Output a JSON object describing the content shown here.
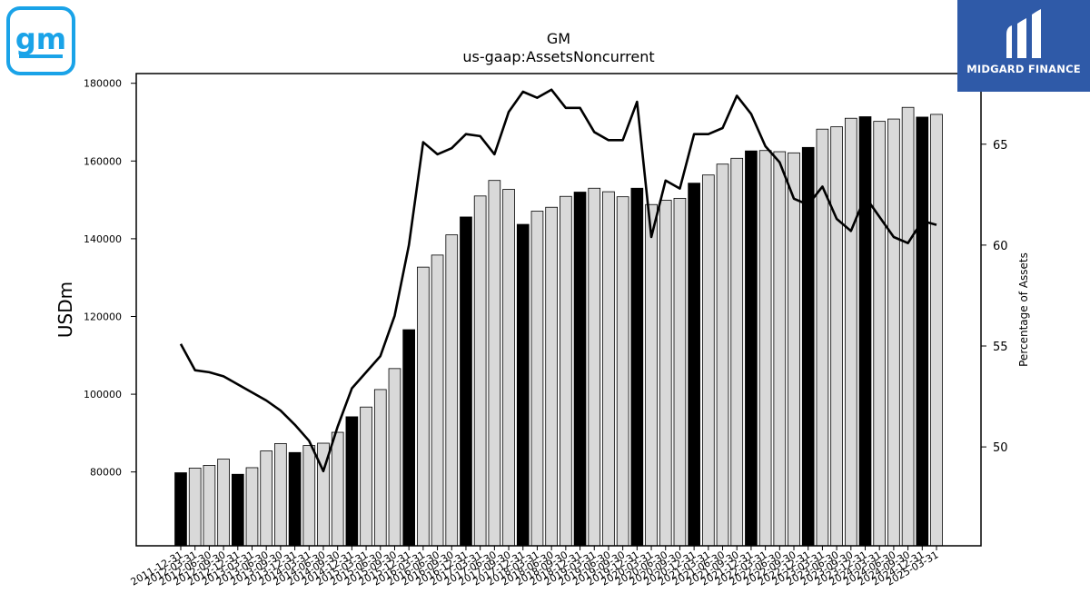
{
  "logos": {
    "gm_text": "gm",
    "midgard_text": "MIDGARD FINANCE"
  },
  "colors": {
    "gm_logo": "#1aa3e8",
    "midgard_bg": "#2f5aa8",
    "bar_highlight": "#000000",
    "bar_default": "#d9d9d9",
    "line": "#000000"
  },
  "chart_data": {
    "type": "bar",
    "title": "GM",
    "subtitle": "us-gaap:AssetsNoncurrent",
    "ylabel": "USDm",
    "y2label": "Percentage of Assets",
    "ylim": [
      61000,
      182500
    ],
    "y2lim": [
      45.1,
      68.5
    ],
    "yticks": [
      80000,
      100000,
      120000,
      140000,
      160000,
      180000
    ],
    "y2ticks": [
      50,
      55,
      60,
      65
    ],
    "categories": [
      "2011-12-31",
      "2012-03-31",
      "2012-06-30",
      "2012-09-30",
      "2012-12-31",
      "2013-03-31",
      "2013-06-30",
      "2013-09-30",
      "2013-12-31",
      "2014-03-31",
      "2014-06-30",
      "2014-09-30",
      "2014-12-31",
      "2015-03-31",
      "2015-06-30",
      "2015-09-30",
      "2015-12-31",
      "2016-03-31",
      "2016-06-30",
      "2016-09-30",
      "2016-12-31",
      "2017-03-31",
      "2017-06-30",
      "2017-09-30",
      "2017-12-31",
      "2018-03-31",
      "2018-06-30",
      "2018-09-30",
      "2018-12-31",
      "2019-03-31",
      "2019-06-30",
      "2019-09-30",
      "2019-12-31",
      "2020-03-31",
      "2020-06-30",
      "2020-09-30",
      "2020-12-31",
      "2021-03-31",
      "2021-06-30",
      "2021-09-30",
      "2021-12-31",
      "2022-03-31",
      "2022-06-30",
      "2022-09-30",
      "2022-12-31",
      "2023-03-31",
      "2023-06-30",
      "2023-09-30",
      "2023-12-31",
      "2024-03-31",
      "2024-06-30",
      "2024-09-30",
      "2024-12-31",
      "2025-03-31"
    ],
    "highlight": [
      true,
      false,
      false,
      false,
      true,
      false,
      false,
      false,
      true,
      false,
      false,
      false,
      true,
      false,
      false,
      false,
      true,
      false,
      false,
      false,
      true,
      false,
      false,
      false,
      true,
      false,
      false,
      false,
      true,
      false,
      false,
      false,
      true,
      false,
      false,
      false,
      true,
      false,
      false,
      false,
      true,
      false,
      false,
      false,
      true,
      false,
      false,
      false,
      true,
      false,
      false,
      false,
      true,
      false
    ],
    "series": [
      {
        "type": "bar",
        "axis": "left",
        "values": [
          79800,
          81000,
          81700,
          83300,
          79400,
          81100,
          85400,
          87300,
          85000,
          86800,
          87400,
          90200,
          94200,
          96700,
          101200,
          106600,
          116600,
          132700,
          135800,
          141000,
          145600,
          151000,
          155000,
          152700,
          143700,
          147100,
          148100,
          150900,
          152000,
          153000,
          152100,
          150800,
          153000,
          148800,
          149900,
          150400,
          154300,
          156400,
          159200,
          160700,
          162600,
          162700,
          162400,
          162100,
          163500,
          168200,
          168800,
          171000,
          171400,
          170200,
          170800,
          173800,
          171300,
          172000
        ]
      },
      {
        "type": "line",
        "axis": "right",
        "values": [
          55.1,
          53.8,
          53.7,
          53.5,
          53.1,
          52.7,
          52.3,
          51.8,
          51.1,
          50.3,
          48.8,
          51.0,
          52.9,
          53.7,
          54.5,
          56.5,
          60.0,
          65.1,
          64.5,
          64.8,
          65.5,
          65.4,
          64.5,
          66.6,
          67.6,
          67.3,
          67.7,
          66.8,
          66.8,
          65.6,
          65.2,
          65.2,
          67.1,
          60.4,
          63.2,
          62.8,
          65.5,
          65.5,
          65.8,
          67.4,
          66.5,
          64.9,
          64.1,
          62.3,
          62.0,
          62.9,
          61.3,
          60.7,
          62.4,
          61.4,
          60.4,
          60.1,
          61.2,
          61.0
        ]
      }
    ]
  }
}
